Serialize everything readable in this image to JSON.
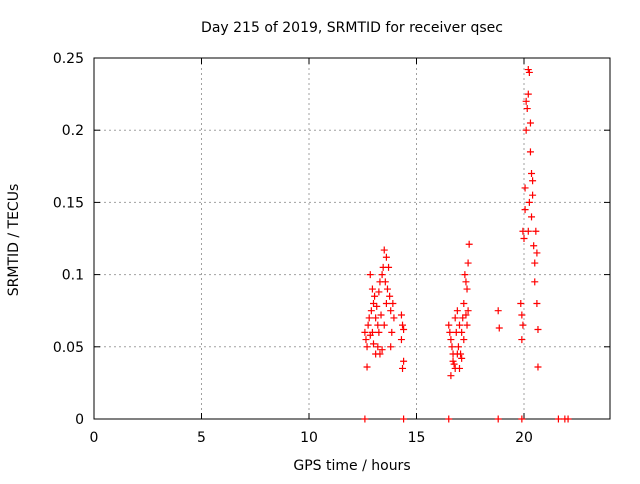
{
  "chart_data": {
    "type": "scatter",
    "title": "Day 215 of 2019, SRMTID for receiver qsec",
    "xlabel": "GPS time / hours",
    "ylabel": "SRMTID / TECUs",
    "xlim": [
      0,
      24
    ],
    "ylim": [
      0,
      0.25
    ],
    "x_ticks": [
      0,
      5,
      10,
      15,
      20
    ],
    "x_tick_labels": [
      "0",
      "5",
      "10",
      "15",
      "20"
    ],
    "y_ticks": [
      0,
      0.05,
      0.1,
      0.15,
      0.2,
      0.25
    ],
    "y_tick_labels": [
      "0",
      "0.05",
      "0.1",
      "0.15",
      "0.2",
      "0.25"
    ],
    "grid": true,
    "marker": "+",
    "color": "#ff0000",
    "series": [
      {
        "name": "SRMTID",
        "points": [
          [
            12.6,
            0.06
          ],
          [
            12.65,
            0.055
          ],
          [
            12.7,
            0.05
          ],
          [
            12.75,
            0.065
          ],
          [
            12.8,
            0.07
          ],
          [
            12.85,
            0.058
          ],
          [
            12.7,
            0.036
          ],
          [
            12.9,
            0.075
          ],
          [
            12.95,
            0.09
          ],
          [
            13.0,
            0.08
          ],
          [
            12.85,
            0.1
          ],
          [
            13.05,
            0.085
          ],
          [
            13.1,
            0.07
          ],
          [
            13.15,
            0.078
          ],
          [
            13.2,
            0.065
          ],
          [
            13.2,
            0.05
          ],
          [
            13.25,
            0.088
          ],
          [
            13.3,
            0.095
          ],
          [
            13.35,
            0.072
          ],
          [
            13.3,
            0.045
          ],
          [
            13.4,
            0.1
          ],
          [
            13.45,
            0.105
          ],
          [
            13.5,
            0.117
          ],
          [
            13.55,
            0.095
          ],
          [
            13.6,
            0.08
          ],
          [
            13.5,
            0.065
          ],
          [
            13.6,
            0.112
          ],
          [
            13.65,
            0.09
          ],
          [
            13.7,
            0.105
          ],
          [
            13.4,
            0.048
          ],
          [
            13.75,
            0.085
          ],
          [
            13.8,
            0.075
          ],
          [
            13.85,
            0.06
          ],
          [
            13.9,
            0.08
          ],
          [
            13.95,
            0.07
          ],
          [
            13.8,
            0.05
          ],
          [
            12.95,
            0.06
          ],
          [
            13.0,
            0.052
          ],
          [
            13.1,
            0.045
          ],
          [
            13.25,
            0.06
          ],
          [
            14.3,
            0.072
          ],
          [
            14.35,
            0.065
          ],
          [
            14.4,
            0.062
          ],
          [
            14.4,
            0.04
          ],
          [
            14.35,
            0.035
          ],
          [
            14.3,
            0.055
          ],
          [
            16.5,
            0.065
          ],
          [
            16.55,
            0.06
          ],
          [
            16.6,
            0.055
          ],
          [
            16.65,
            0.05
          ],
          [
            16.7,
            0.045
          ],
          [
            16.6,
            0.03
          ],
          [
            16.7,
            0.04
          ],
          [
            16.75,
            0.038
          ],
          [
            16.8,
            0.07
          ],
          [
            16.85,
            0.06
          ],
          [
            16.9,
            0.075
          ],
          [
            16.95,
            0.05
          ],
          [
            17.0,
            0.035
          ],
          [
            17.05,
            0.045
          ],
          [
            17.1,
            0.06
          ],
          [
            17.15,
            0.07
          ],
          [
            17.2,
            0.08
          ],
          [
            17.25,
            0.1
          ],
          [
            17.3,
            0.095
          ],
          [
            17.35,
            0.09
          ],
          [
            17.4,
            0.108
          ],
          [
            17.45,
            0.121
          ],
          [
            17.1,
            0.042
          ],
          [
            17.2,
            0.055
          ],
          [
            17.3,
            0.072
          ],
          [
            17.0,
            0.065
          ],
          [
            16.8,
            0.035
          ],
          [
            16.9,
            0.045
          ],
          [
            17.35,
            0.065
          ],
          [
            17.4,
            0.075
          ],
          [
            18.8,
            0.075
          ],
          [
            18.85,
            0.063
          ],
          [
            19.85,
            0.08
          ],
          [
            19.9,
            0.072
          ],
          [
            19.95,
            0.065
          ],
          [
            19.9,
            0.055
          ],
          [
            19.95,
            0.13
          ],
          [
            20.0,
            0.125
          ],
          [
            20.05,
            0.145
          ],
          [
            20.05,
            0.16
          ],
          [
            20.1,
            0.2
          ],
          [
            20.1,
            0.22
          ],
          [
            20.15,
            0.215
          ],
          [
            20.2,
            0.242
          ],
          [
            20.25,
            0.24
          ],
          [
            20.2,
            0.225
          ],
          [
            20.3,
            0.205
          ],
          [
            20.3,
            0.185
          ],
          [
            20.35,
            0.17
          ],
          [
            20.4,
            0.155
          ],
          [
            20.45,
            0.12
          ],
          [
            20.5,
            0.108
          ],
          [
            20.5,
            0.095
          ],
          [
            20.55,
            0.13
          ],
          [
            20.6,
            0.115
          ],
          [
            20.6,
            0.08
          ],
          [
            20.65,
            0.062
          ],
          [
            20.65,
            0.036
          ],
          [
            20.2,
            0.13
          ],
          [
            20.25,
            0.15
          ],
          [
            20.35,
            0.14
          ],
          [
            20.4,
            0.165
          ],
          [
            12.6,
            0.0
          ],
          [
            14.4,
            0.0
          ],
          [
            16.5,
            0.0
          ],
          [
            18.8,
            0.0
          ],
          [
            19.9,
            0.0
          ],
          [
            21.6,
            0.0
          ],
          [
            21.9,
            0.0
          ],
          [
            22.05,
            0.0
          ]
        ]
      }
    ]
  }
}
